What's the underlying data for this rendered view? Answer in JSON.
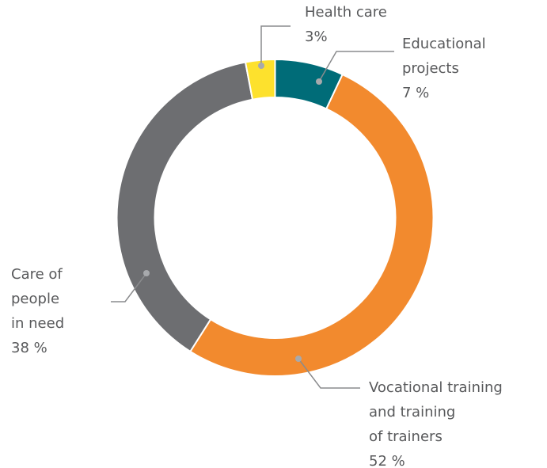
{
  "chart_data": {
    "type": "donut",
    "categories": [
      "Educational\nprojects",
      "Vocational training\nand training\nof trainers",
      "Care of\npeople\nin need",
      "Health care"
    ],
    "values": [
      7,
      52,
      38,
      3
    ],
    "value_labels": [
      "7 %",
      "52 %",
      "38 %",
      "3%"
    ],
    "colors": [
      "#006c78",
      "#f28a2e",
      "#6d6e71",
      "#fde12d"
    ]
  }
}
